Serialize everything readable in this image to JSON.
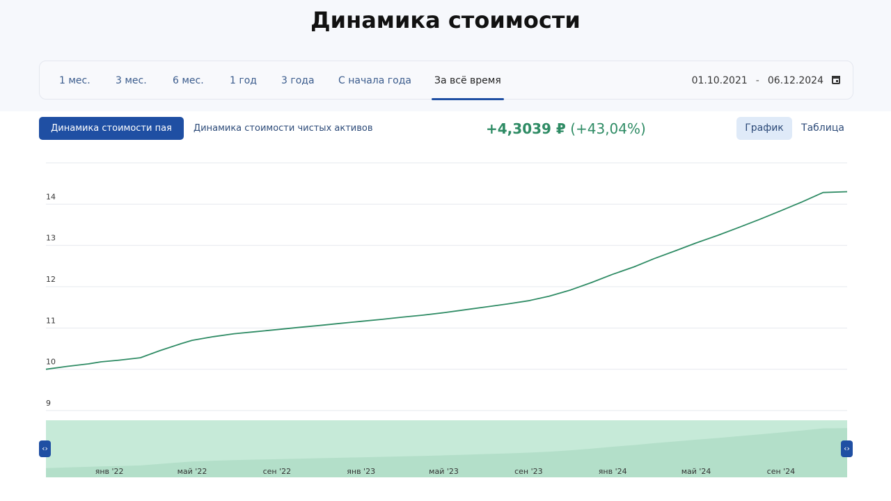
{
  "page": {
    "title": "Динамика стоимости"
  },
  "period_tabs": [
    {
      "label": "1 мес.",
      "active": false
    },
    {
      "label": "3 мес.",
      "active": false
    },
    {
      "label": "6 мес.",
      "active": false
    },
    {
      "label": "1 год",
      "active": false
    },
    {
      "label": "3 года",
      "active": false
    },
    {
      "label": "С начала года",
      "active": false
    },
    {
      "label": "За всё время",
      "active": true
    }
  ],
  "date_range": {
    "from": "01.10.2021",
    "separator": "-",
    "to": "06.12.2024",
    "icon": "calendar-icon"
  },
  "mode_buttons": {
    "unit_value": "Динамика стоимости пая",
    "net_assets": "Динамика стоимости чистых активов"
  },
  "change": {
    "absolute": "+4,3039 ₽",
    "percent": "(+43,04%)"
  },
  "view_toggle": {
    "graph": "График",
    "table": "Таблица"
  },
  "navigator": {
    "left_handle_icon": "code-brackets-icon",
    "right_handle_icon": "code-brackets-icon"
  },
  "colors": {
    "accent": "#1f4fa3",
    "line": "#2e8b64",
    "navigator_fill": "#c6ead8",
    "navigator_area": "#b3dfc9"
  },
  "chart_data": {
    "type": "line",
    "title": "",
    "xlabel": "",
    "ylabel": "",
    "x_range": [
      "2021-10-01",
      "2024-12-06"
    ],
    "ylim": [
      9,
      15
    ],
    "y_ticks": [
      9,
      10,
      11,
      12,
      13,
      14
    ],
    "grid": true,
    "legend": "none",
    "series": [
      {
        "points": [
          [
            "2021-10-01",
            10.0
          ],
          [
            "2021-11-01",
            10.07
          ],
          [
            "2021-12-01",
            10.13
          ],
          [
            "2021-12-20",
            10.18
          ],
          [
            "2022-01-15",
            10.22
          ],
          [
            "2022-02-15",
            10.28
          ],
          [
            "2022-03-15",
            10.45
          ],
          [
            "2022-04-15",
            10.62
          ],
          [
            "2022-05-01",
            10.7
          ],
          [
            "2022-06-01",
            10.79
          ],
          [
            "2022-07-01",
            10.86
          ],
          [
            "2022-08-01",
            10.91
          ],
          [
            "2022-09-01",
            10.96
          ],
          [
            "2022-10-01",
            11.01
          ],
          [
            "2022-11-01",
            11.06
          ],
          [
            "2022-12-01",
            11.11
          ],
          [
            "2023-01-01",
            11.16
          ],
          [
            "2023-02-01",
            11.21
          ],
          [
            "2023-03-01",
            11.26
          ],
          [
            "2023-04-01",
            11.31
          ],
          [
            "2023-05-01",
            11.37
          ],
          [
            "2023-06-01",
            11.44
          ],
          [
            "2023-07-01",
            11.51
          ],
          [
            "2023-08-01",
            11.58
          ],
          [
            "2023-09-01",
            11.66
          ],
          [
            "2023-10-01",
            11.77
          ],
          [
            "2023-11-01",
            11.92
          ],
          [
            "2023-12-01",
            12.1
          ],
          [
            "2024-01-01",
            12.3
          ],
          [
            "2024-02-01",
            12.48
          ],
          [
            "2024-03-01",
            12.68
          ],
          [
            "2024-04-01",
            12.87
          ],
          [
            "2024-05-01",
            13.06
          ],
          [
            "2024-06-01",
            13.24
          ],
          [
            "2024-07-01",
            13.43
          ],
          [
            "2024-08-01",
            13.63
          ],
          [
            "2024-09-01",
            13.84
          ],
          [
            "2024-10-01",
            14.05
          ],
          [
            "2024-11-01",
            14.28
          ],
          [
            "2024-12-06",
            14.3
          ]
        ]
      }
    ],
    "navigator_ticks": [
      {
        "label": "янв '22",
        "date": "2022-01-01"
      },
      {
        "label": "май '22",
        "date": "2022-05-01"
      },
      {
        "label": "сен '22",
        "date": "2022-09-01"
      },
      {
        "label": "янв '23",
        "date": "2023-01-01"
      },
      {
        "label": "май '23",
        "date": "2023-05-01"
      },
      {
        "label": "сен '23",
        "date": "2023-09-01"
      },
      {
        "label": "янв '24",
        "date": "2024-01-01"
      },
      {
        "label": "май '24",
        "date": "2024-05-01"
      },
      {
        "label": "сен '24",
        "date": "2024-09-01"
      }
    ]
  }
}
